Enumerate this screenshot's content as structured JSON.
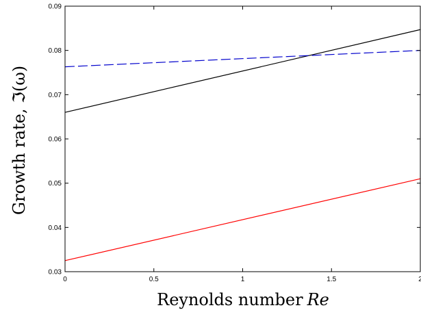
{
  "chart_data": {
    "type": "line",
    "xlabel": "Reynolds number",
    "xlabel_symbol": "Re",
    "ylabel": "Growth rate, ℑ(ω)",
    "xlim": [
      0,
      2
    ],
    "ylim": [
      0.03,
      0.09
    ],
    "xticks": [
      0,
      0.5,
      1,
      1.5,
      2
    ],
    "xtick_labels": [
      "0",
      "0.5",
      "1",
      "1.5",
      "2"
    ],
    "yticks": [
      0.03,
      0.04,
      0.05,
      0.06,
      0.07,
      0.08,
      0.09
    ],
    "ytick_labels": [
      "0.03",
      "0.04",
      "0.05",
      "0.06",
      "0.07",
      "0.08",
      "0.09"
    ],
    "grid": false,
    "legend": false,
    "series": [
      {
        "color": "#000000",
        "style": "solid",
        "x": [
          0,
          2
        ],
        "y": [
          0.066,
          0.0847
        ]
      },
      {
        "color": "#0000cc",
        "style": "dashed",
        "x": [
          0,
          2
        ],
        "y": [
          0.0763,
          0.08
        ]
      },
      {
        "color": "#ff0000",
        "style": "solid",
        "x": [
          0,
          2
        ],
        "y": [
          0.0325,
          0.051
        ]
      }
    ]
  }
}
